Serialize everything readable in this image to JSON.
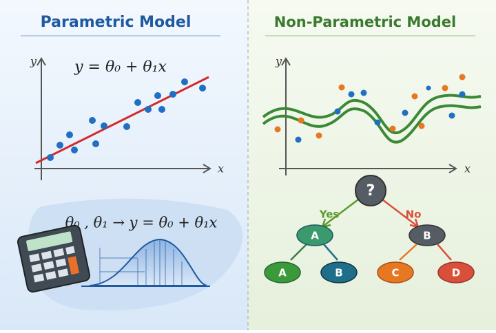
{
  "left": {
    "title": "Parametric Model",
    "plot": {
      "y_label": "y",
      "x_label": "x",
      "formula": "y = θ₀ + θ₁x"
    },
    "bottom_formula": "θ₀ ,  θ₁ → y = θ₀ + θ₁x"
  },
  "right": {
    "title": "Non-Parametric Model",
    "plot": {
      "y_label": "y",
      "x_label": "x"
    },
    "tree": {
      "nodes": [
        "?",
        "A",
        "B",
        "A",
        "B",
        "C",
        "D"
      ],
      "edges": [
        "Yes",
        "No"
      ]
    }
  }
}
